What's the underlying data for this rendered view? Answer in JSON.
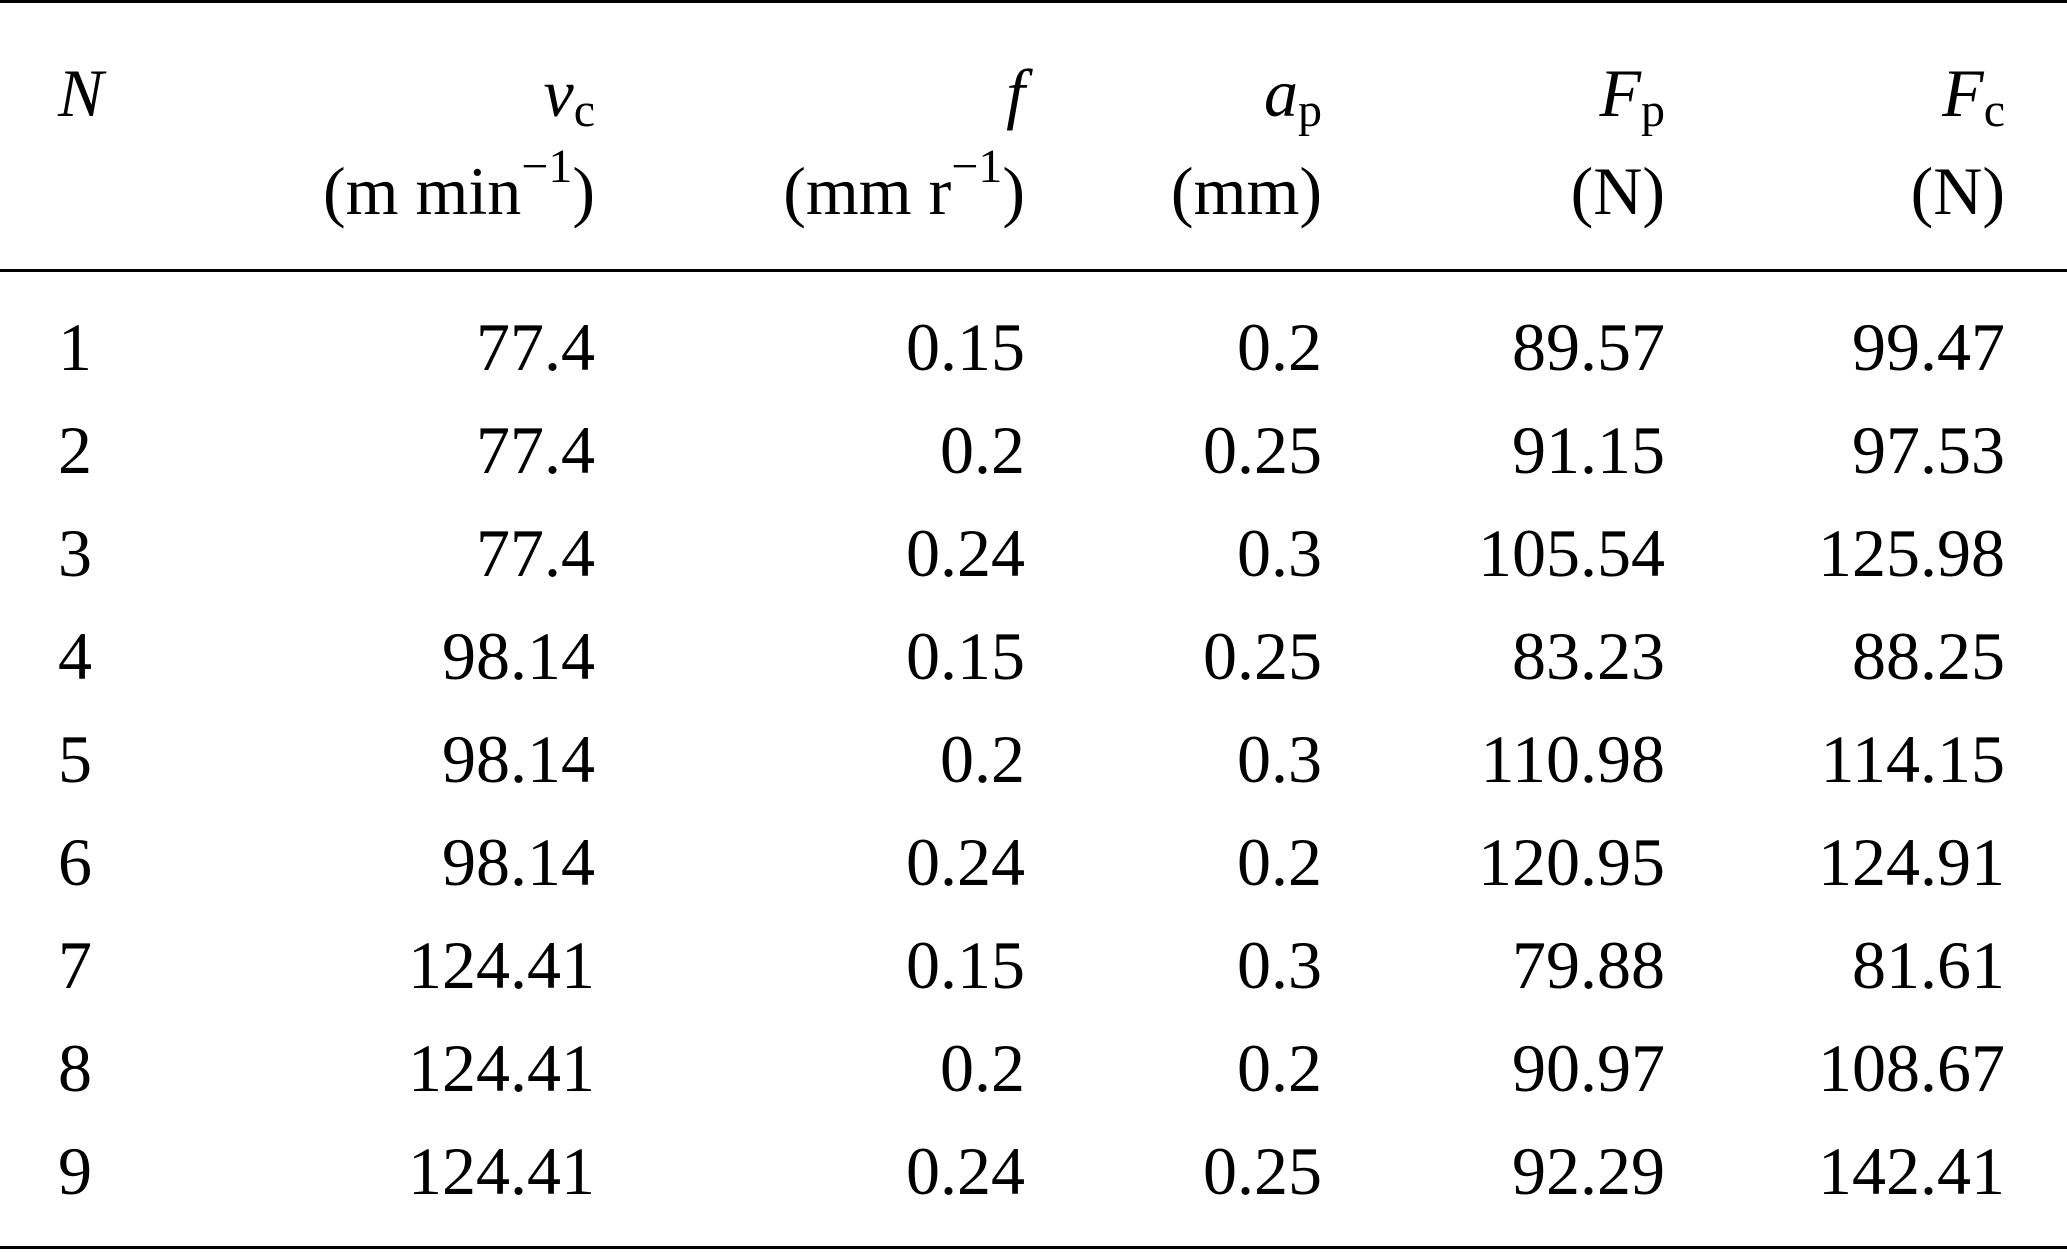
{
  "table": {
    "headers": [
      {
        "symbol": "N",
        "sub": "",
        "unit_before": "",
        "unit_sup": "",
        "unit_after": ""
      },
      {
        "symbol": "v",
        "sub": "c",
        "unit_before": "(m min",
        "unit_sup": "−1",
        "unit_after": ")"
      },
      {
        "symbol": "f",
        "sub": "",
        "unit_before": "(mm r",
        "unit_sup": "−1",
        "unit_after": ")"
      },
      {
        "symbol": "a",
        "sub": "p",
        "unit_before": "(mm)",
        "unit_sup": "",
        "unit_after": ""
      },
      {
        "symbol": "F",
        "sub": "p",
        "unit_before": "(N)",
        "unit_sup": "",
        "unit_after": ""
      },
      {
        "symbol": "F",
        "sub": "c",
        "unit_before": "(N)",
        "unit_sup": "",
        "unit_after": ""
      }
    ],
    "rows": [
      [
        "1",
        "77.4",
        "0.15",
        "0.2",
        "89.57",
        "99.47"
      ],
      [
        "2",
        "77.4",
        "0.2",
        "0.25",
        "91.15",
        "97.53"
      ],
      [
        "3",
        "77.4",
        "0.24",
        "0.3",
        "105.54",
        "125.98"
      ],
      [
        "4",
        "98.14",
        "0.15",
        "0.25",
        "83.23",
        "88.25"
      ],
      [
        "5",
        "98.14",
        "0.2",
        "0.3",
        "110.98",
        "114.15"
      ],
      [
        "6",
        "98.14",
        "0.24",
        "0.2",
        "120.95",
        "124.91"
      ],
      [
        "7",
        "124.41",
        "0.15",
        "0.3",
        "79.88",
        "81.61"
      ],
      [
        "8",
        "124.41",
        "0.2",
        "0.2",
        "90.97",
        "108.67"
      ],
      [
        "9",
        "124.41",
        "0.24",
        "0.25",
        "92.29",
        "142.41"
      ]
    ]
  }
}
